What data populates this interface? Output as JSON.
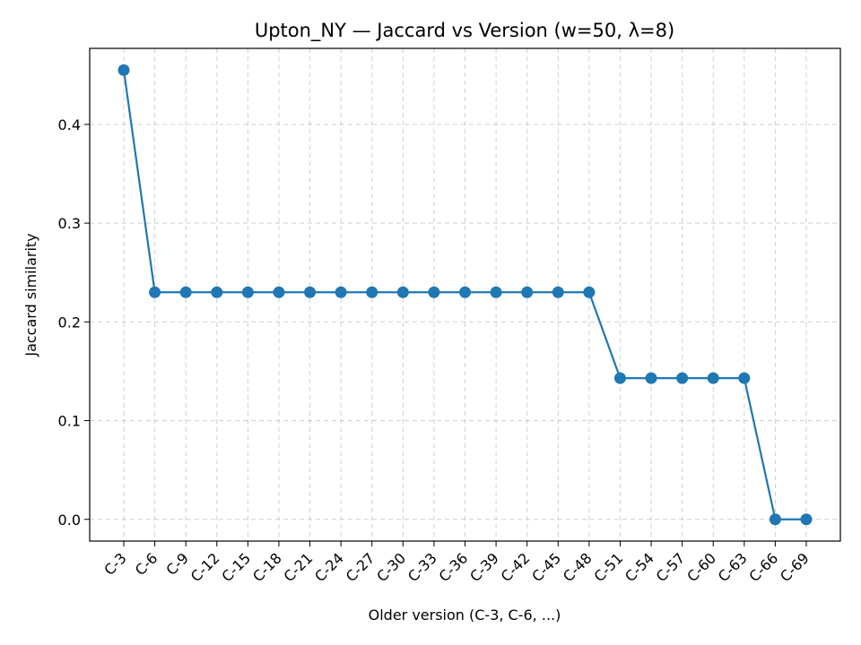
{
  "chart_data": {
    "type": "line",
    "title": "Upton_NY — Jaccard vs Version (w=50, λ=8)",
    "xlabel": "Older version (C-3, C-6, ...)",
    "ylabel": "Jaccard similarity",
    "categories": [
      "C-3",
      "C-6",
      "C-9",
      "C-12",
      "C-15",
      "C-18",
      "C-21",
      "C-24",
      "C-27",
      "C-30",
      "C-33",
      "C-36",
      "C-39",
      "C-42",
      "C-45",
      "C-48",
      "C-51",
      "C-54",
      "C-57",
      "C-60",
      "C-63",
      "C-66",
      "C-69"
    ],
    "series": [
      {
        "name": "",
        "color": "#1f77b4",
        "values": [
          0.455,
          0.23,
          0.23,
          0.23,
          0.23,
          0.23,
          0.23,
          0.23,
          0.23,
          0.23,
          0.23,
          0.23,
          0.23,
          0.23,
          0.23,
          0.23,
          0.143,
          0.143,
          0.143,
          0.143,
          0.143,
          0.0,
          0.0
        ]
      }
    ],
    "ylim": [
      -0.022,
      0.477
    ],
    "yticks": [
      0.0,
      0.1,
      0.2,
      0.3,
      0.4
    ],
    "ytick_labels": [
      "0.0",
      "0.1",
      "0.2",
      "0.3",
      "0.4"
    ],
    "grid": true,
    "legend": "none"
  }
}
